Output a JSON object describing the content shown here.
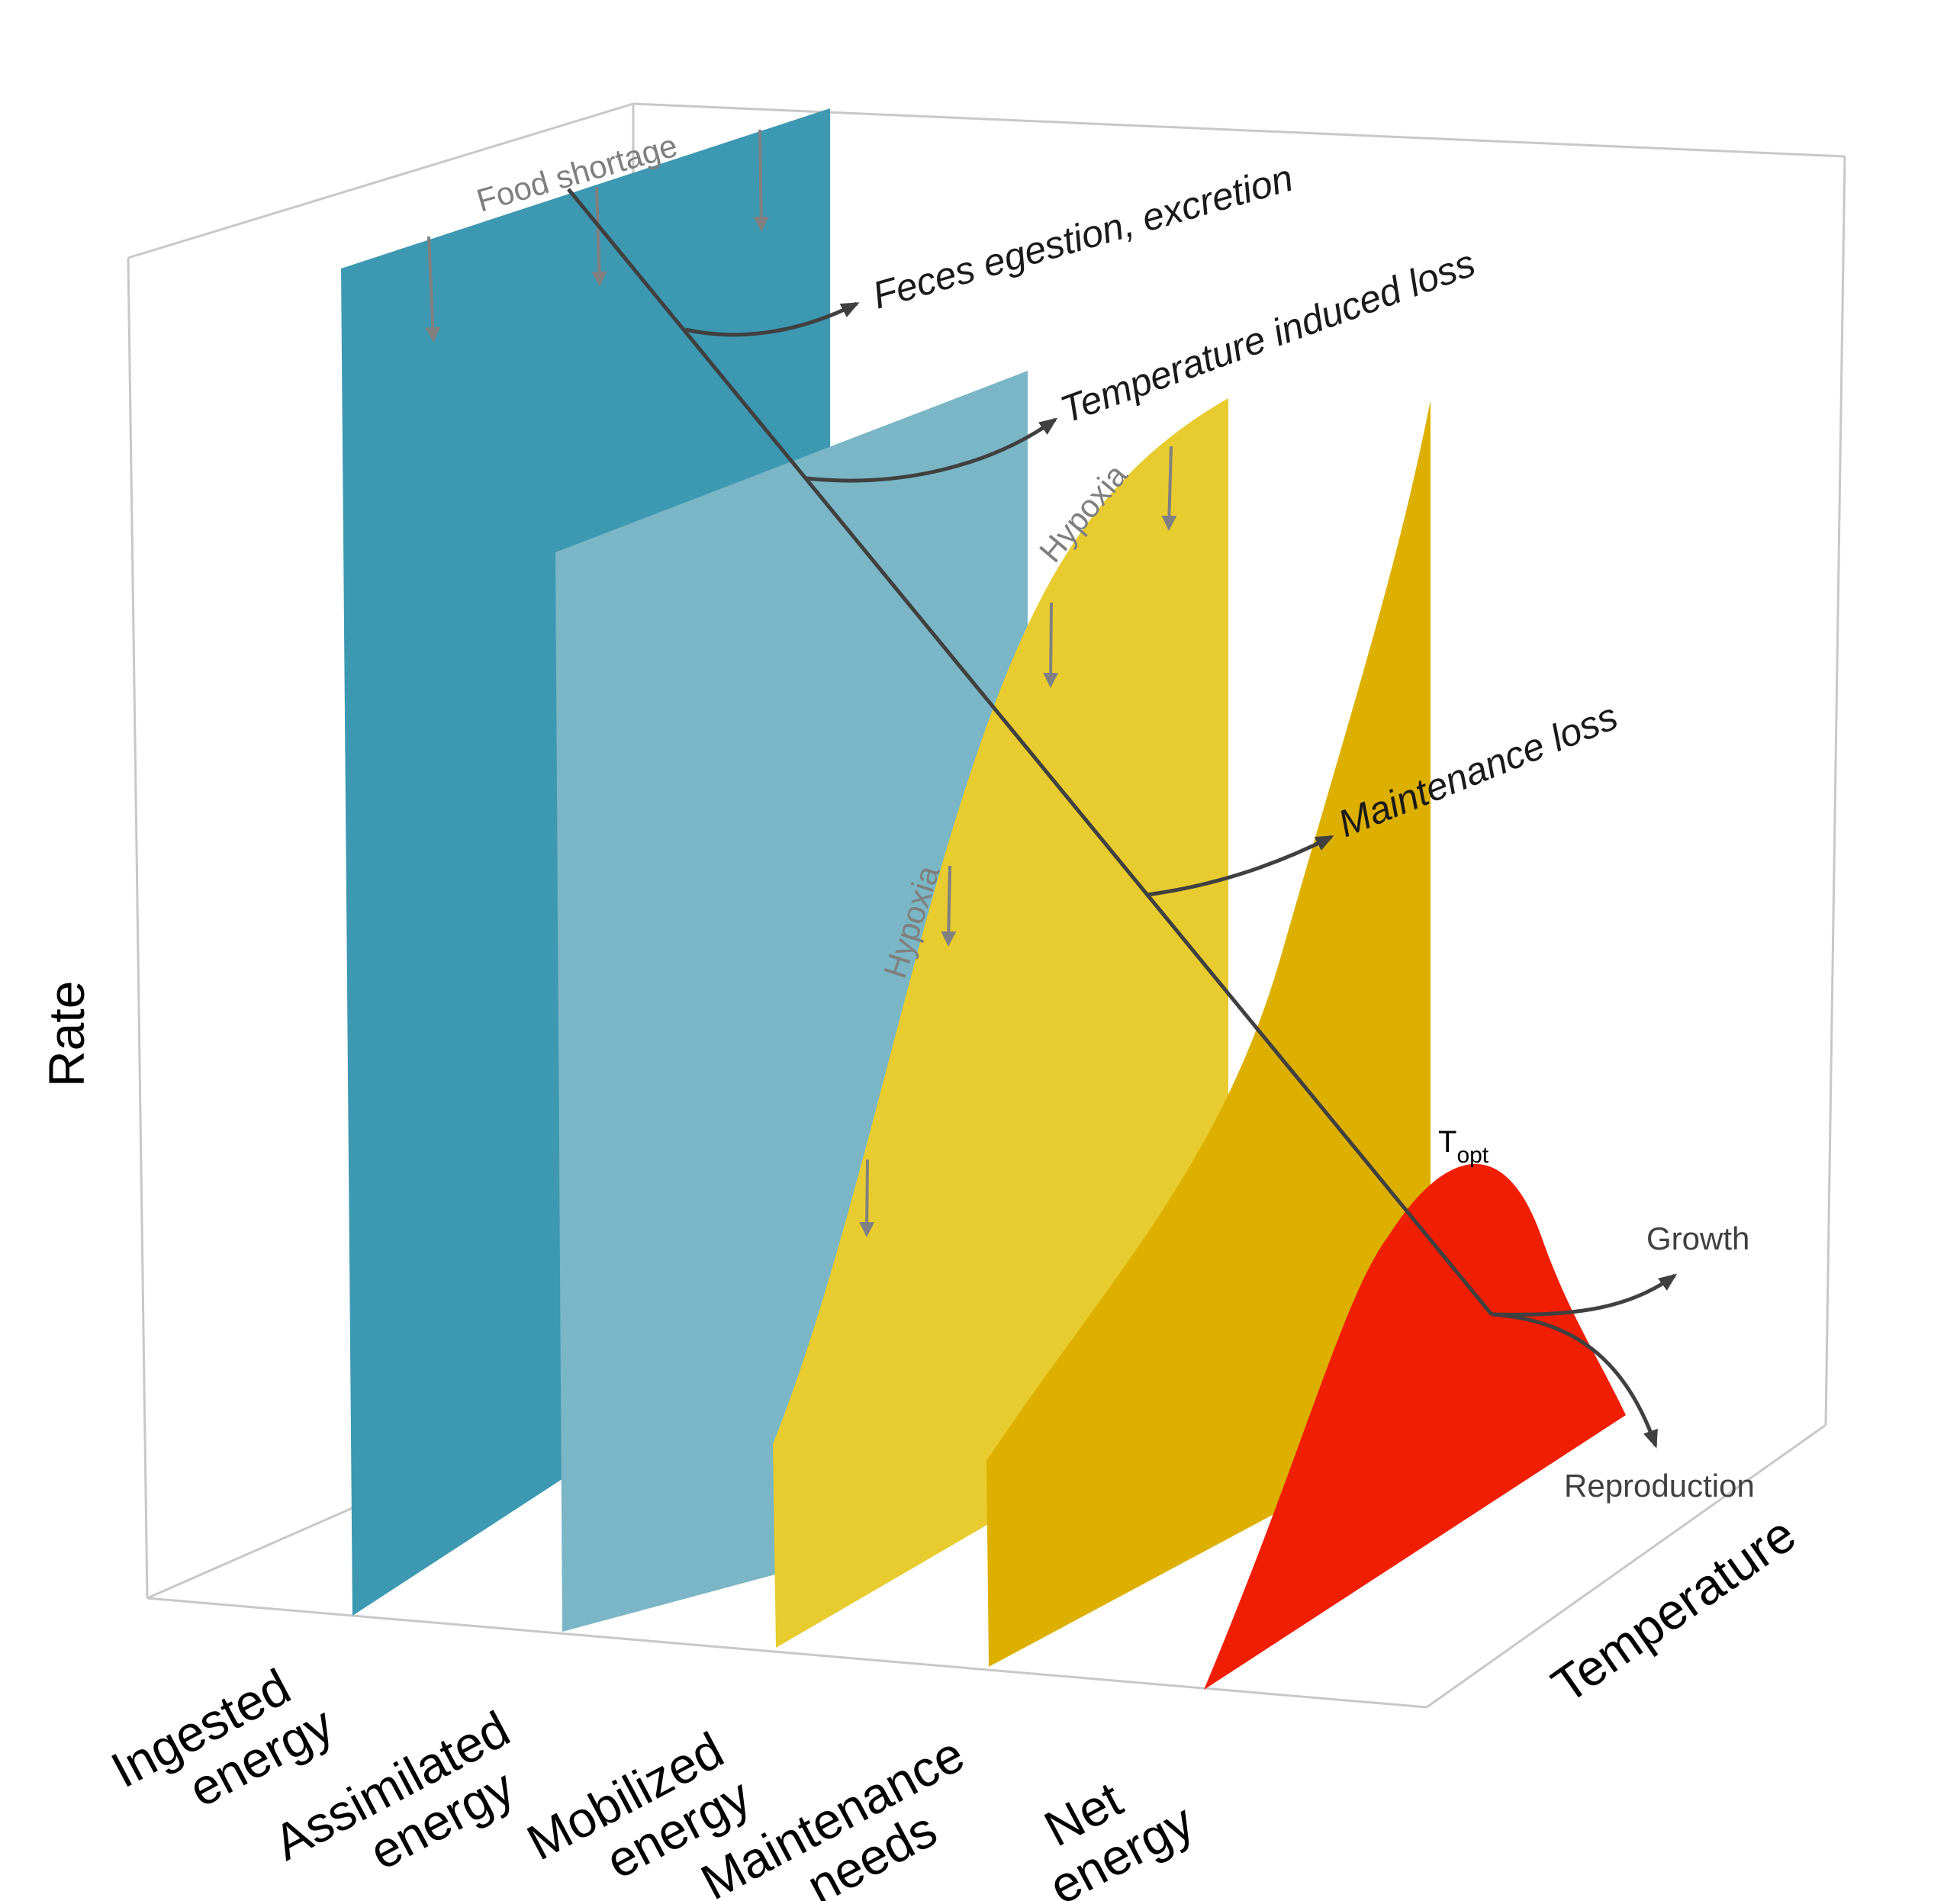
{
  "axes": {
    "y_label": "Rate",
    "z_label": "Temperature"
  },
  "panels": [
    {
      "id": "ingested",
      "line1": "Ingested",
      "line2": "energy",
      "color": "#3d98b2"
    },
    {
      "id": "assimilated",
      "line1": "Assimilated",
      "line2": "energy",
      "color": "#7ab6c5"
    },
    {
      "id": "mobilized",
      "line1": "Mobilized",
      "line2": "energy",
      "color": "#e8cb2e"
    },
    {
      "id": "maintenance",
      "line1": "Maintenance",
      "line2": "needs",
      "color": "#ddb000"
    },
    {
      "id": "net",
      "line1": "Net",
      "line2": "energy",
      "color": "#f01e05"
    }
  ],
  "annotations": {
    "food_shortage": "Food shortage",
    "feces": "Feces egestion, excretion",
    "temperature_loss": "Temperature induced loss",
    "hypoxia_upper": "Hypoxia",
    "hypoxia_lower": "Hypoxia",
    "maintenance_loss": "Maintenance loss",
    "topt_main": "T",
    "topt_sub": "opt",
    "growth": "Growth",
    "reproduction": "Reproduction"
  },
  "colors": {
    "box": "#c8c8c8",
    "arrow_dark": "#404040",
    "arrow_grey": "#808080"
  }
}
